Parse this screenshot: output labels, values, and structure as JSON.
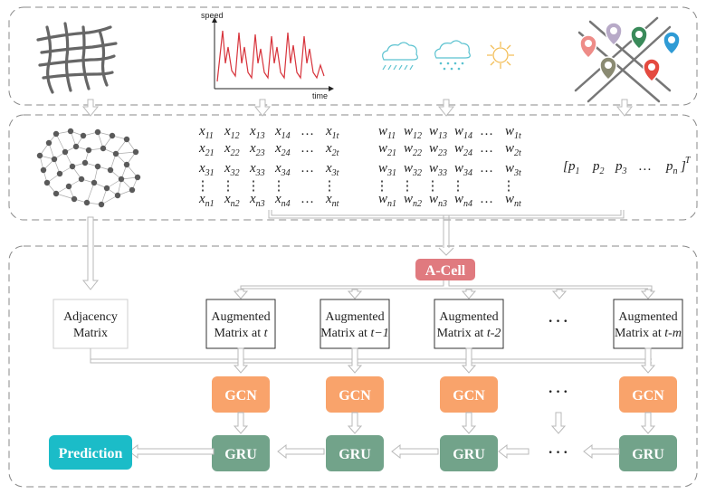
{
  "colors": {
    "gcn": "#f9a36b",
    "gru": "#72a38a",
    "acell": "#e07a7f",
    "prediction": "#1bbcc8",
    "speed_line": "#d7333b",
    "weather": "#5bc2d0",
    "sun": "#f3bf5a",
    "dash": "#888888",
    "arrow": "#b9b9b9"
  },
  "icons": {
    "road": "road-network-icon",
    "speed": "speed-chart-icon",
    "rain": "rain-cloud-icon",
    "snow": "snow-cloud-icon",
    "sun": "sun-icon",
    "poi": "poi-map-icon",
    "graph": "graph-network-icon"
  },
  "speed_chart": {
    "ylabel": "speed",
    "xlabel": "time"
  },
  "matrix_x": {
    "var": "x",
    "rows": [
      [
        "11",
        "12",
        "13",
        "14",
        "1t"
      ],
      [
        "21",
        "22",
        "23",
        "24",
        "2t"
      ],
      [
        "31",
        "32",
        "33",
        "34",
        "3t"
      ],
      [
        "n1",
        "n2",
        "n3",
        "n4",
        "nt"
      ]
    ]
  },
  "matrix_w": {
    "var": "w",
    "rows": [
      [
        "11",
        "12",
        "13",
        "14",
        "1t"
      ],
      [
        "21",
        "22",
        "23",
        "24",
        "2t"
      ],
      [
        "31",
        "32",
        "33",
        "34",
        "3t"
      ],
      [
        "n1",
        "n2",
        "n3",
        "n4",
        "nt"
      ]
    ]
  },
  "poi_vector": {
    "var": "p",
    "subs": [
      "1",
      "2",
      "3",
      "n"
    ],
    "ellipsis": "…",
    "transpose": "T"
  },
  "acell": "A-Cell",
  "adjacency": {
    "line1": "Adjacency",
    "line2": "Matrix"
  },
  "augmented": {
    "line1": "Augmented",
    "line2_prefix": "Matrix at ",
    "times": [
      "t",
      "t−1",
      "t-2",
      "t-m"
    ]
  },
  "gcn_label": "GCN",
  "gru_label": "GRU",
  "prediction": "Prediction",
  "dots": "···"
}
